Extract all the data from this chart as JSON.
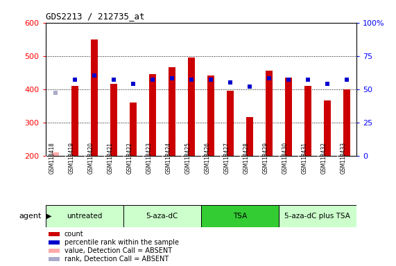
{
  "title": "GDS2213 / 212735_at",
  "samples": [
    "GSM118418",
    "GSM118419",
    "GSM118420",
    "GSM118421",
    "GSM118422",
    "GSM118423",
    "GSM118424",
    "GSM118425",
    "GSM118426",
    "GSM118427",
    "GSM118428",
    "GSM118429",
    "GSM118430",
    "GSM118431",
    "GSM118432",
    "GSM118433"
  ],
  "counts": [
    210,
    410,
    550,
    415,
    360,
    445,
    465,
    495,
    440,
    395,
    315,
    455,
    435,
    410,
    365,
    400
  ],
  "percentile_ranks": [
    47,
    57,
    60,
    57,
    54,
    57,
    58,
    57,
    57,
    55,
    52,
    58,
    57,
    57,
    54,
    57
  ],
  "absent_flags": [
    true,
    false,
    false,
    false,
    false,
    false,
    false,
    false,
    false,
    false,
    false,
    false,
    false,
    false,
    false,
    false
  ],
  "absent_rank_flags": [
    true,
    false,
    false,
    false,
    false,
    false,
    false,
    false,
    false,
    false,
    false,
    false,
    false,
    false,
    false,
    false
  ],
  "count_bar_color": "#cc0000",
  "count_bar_absent_color": "#ffaaaa",
  "percentile_color": "#0000cc",
  "percentile_absent_color": "#aaaacc",
  "ylim_left": [
    200,
    600
  ],
  "ylim_right": [
    0,
    100
  ],
  "yticks_left": [
    200,
    300,
    400,
    500,
    600
  ],
  "yticks_right": [
    0,
    25,
    50,
    75,
    100
  ],
  "groups": [
    {
      "label": "untreated",
      "start": 0,
      "end": 4,
      "color": "#ccffcc"
    },
    {
      "label": "5-aza-dC",
      "start": 4,
      "end": 8,
      "color": "#ccffcc"
    },
    {
      "label": "TSA",
      "start": 8,
      "end": 12,
      "color": "#33cc33"
    },
    {
      "label": "5-aza-dC plus TSA",
      "start": 12,
      "end": 16,
      "color": "#ccffcc"
    }
  ],
  "group_dividers": [
    4,
    8,
    12
  ],
  "xlabel_agent": "agent",
  "bar_width": 0.35,
  "figure_bg": "#ffffff",
  "axis_bg": "#ffffff",
  "tick_area_bg": "#cccccc",
  "legend_items": [
    {
      "label": "count",
      "color": "#cc0000"
    },
    {
      "label": "percentile rank within the sample",
      "color": "#0000cc"
    },
    {
      "label": "value, Detection Call = ABSENT",
      "color": "#ffaaaa"
    },
    {
      "label": "rank, Detection Call = ABSENT",
      "color": "#aaaacc"
    }
  ]
}
